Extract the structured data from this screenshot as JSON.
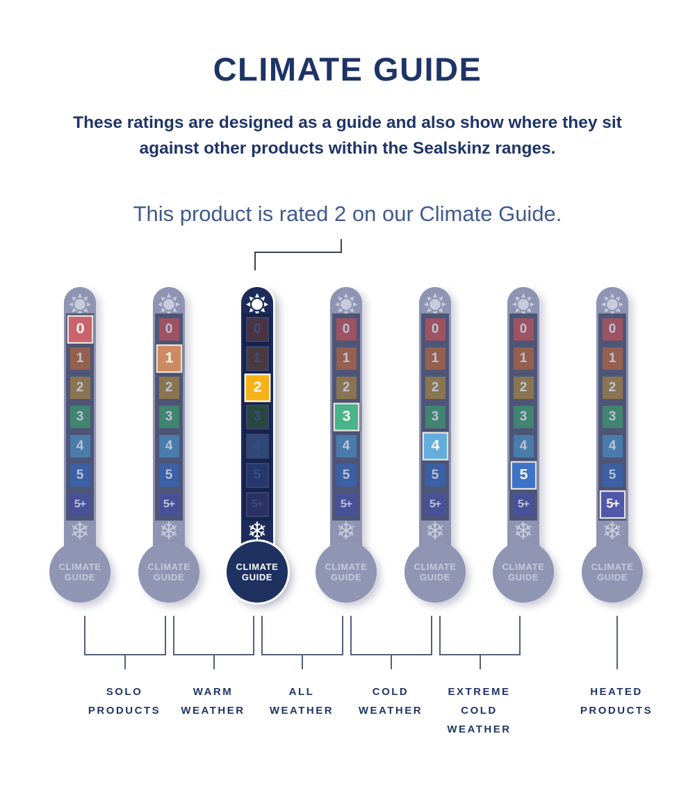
{
  "header": {
    "title": "CLIMATE GUIDE"
  },
  "description": "These ratings are designed as a guide and also show where they sit against other products within the Sealskinz ranges.",
  "statement": "This product is rated 2 on our Climate Guide.",
  "product_rating": "2",
  "rating_scale": [
    "0",
    "1",
    "2",
    "3",
    "4",
    "5",
    "5+"
  ],
  "bulb_label": "CLIMATE GUIDE",
  "thermometers": [
    {
      "name": "rating-0",
      "highlight": "0",
      "active": false
    },
    {
      "name": "rating-1",
      "highlight": "1",
      "active": false
    },
    {
      "name": "rating-2",
      "highlight": "2",
      "active": true
    },
    {
      "name": "rating-3",
      "highlight": "3",
      "active": false
    },
    {
      "name": "rating-4",
      "highlight": "4",
      "active": false
    },
    {
      "name": "rating-5",
      "highlight": "5",
      "active": false
    },
    {
      "name": "rating-5plus",
      "highlight": "5+",
      "active": false
    }
  ],
  "groups": [
    {
      "label": "SOLO\nPRODUCTS",
      "from": 0,
      "to": 1
    },
    {
      "label": "WARM\nWEATHER",
      "from": 1,
      "to": 2
    },
    {
      "label": "ALL\nWEATHER",
      "from": 2,
      "to": 3
    },
    {
      "label": "COLD\nWEATHER",
      "from": 3,
      "to": 4
    },
    {
      "label": "EXTREME\nCOLD\nWEATHER",
      "from": 4,
      "to": 5
    },
    {
      "label": "HEATED\nPRODUCTS",
      "from": 6,
      "to": 6
    }
  ],
  "palette": {
    "title_text": "#1e3467",
    "statement_text": "#41598a",
    "label_text": "#1e3566",
    "stem_faded": "#8e94b2",
    "track_faded": "#4e5678",
    "bulb_faded": "#8f95b3",
    "bulb_text_faded": "#c6cadb",
    "icon_faded": "#c7cbdc",
    "stem_active": "#1c2b59",
    "track_active": "#15234d",
    "bulb_active": "#1e3160",
    "icon_active": "#ffffff",
    "bulb_text_active": "#ffffff",
    "muted_number": "#bcc1d6",
    "active_dim_number": "#3b4f85",
    "highlight_number": "#fdf9f2",
    "highlight_border": "#e9e5e0",
    "active_dim_border": "#3a4470",
    "bracket_line": "#565f78",
    "callout_line": "#3c4148",
    "cells": {
      "0": {
        "muted": "#9d5361",
        "bright": "#c9636c",
        "dim": "#4c3340"
      },
      "1": {
        "muted": "#95604f",
        "bright": "#cd8a63",
        "dim": "#4a3a40"
      },
      "2": {
        "muted": "#8b7550",
        "bright": "#f7b119",
        "dim": "#43414a"
      },
      "3": {
        "muted": "#418570",
        "bright": "#49b389",
        "dim": "#28473f"
      },
      "4": {
        "muted": "#4a7cab",
        "bright": "#64aede",
        "dim": "#2e4878"
      },
      "5": {
        "muted": "#3a60a6",
        "bright": "#3e73c7",
        "dim": "#25386b"
      },
      "5+": {
        "muted": "#49509a",
        "bright": "#5158ab",
        "dim": "#2b3065"
      }
    }
  }
}
